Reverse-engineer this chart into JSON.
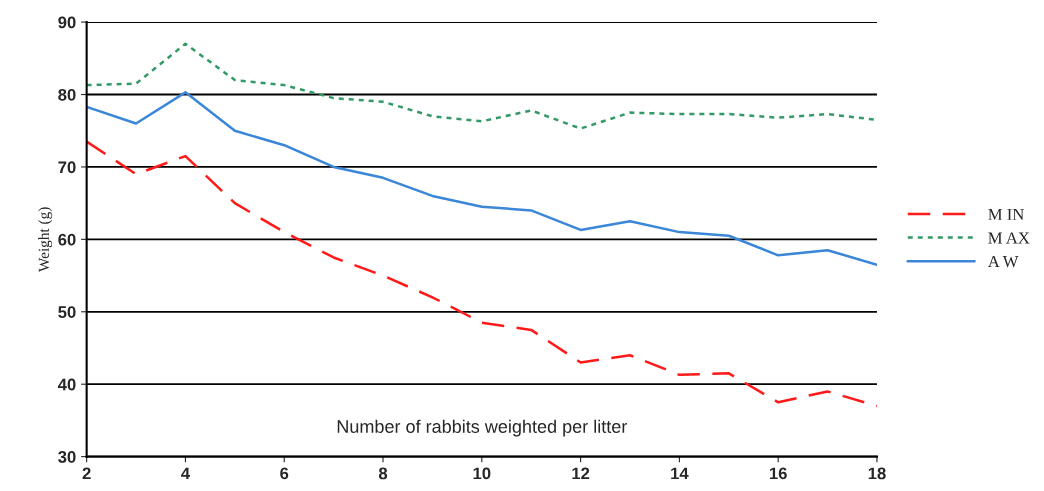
{
  "chart_data": {
    "type": "line",
    "xlabel": "Number of rabbits weighted per litter",
    "ylabel": "Weight (g)",
    "x": [
      2,
      3,
      4,
      5,
      6,
      7,
      8,
      9,
      10,
      11,
      12,
      13,
      14,
      15,
      16,
      17,
      18
    ],
    "series": [
      {
        "name": "M IN",
        "color": "#ff1a1a",
        "line_style": "dashed",
        "values": [
          73.5,
          69,
          71.5,
          65,
          61,
          57.5,
          55,
          52,
          48.5,
          47.5,
          43,
          44,
          41.3,
          41.5,
          37.5,
          39,
          37
        ]
      },
      {
        "name": "M AX",
        "color": "#339966",
        "line_style": "dotted",
        "values": [
          81.3,
          81.5,
          87,
          82,
          81.3,
          79.5,
          79,
          77,
          76.3,
          77.8,
          75.3,
          77.5,
          77.3,
          77.3,
          76.8,
          77.3,
          76.5
        ]
      },
      {
        "name": "A W",
        "color": "#3a86d8",
        "line_style": "solid",
        "values": [
          78.3,
          76,
          80.3,
          75,
          73,
          70,
          68.5,
          66,
          64.5,
          64,
          61.3,
          62.5,
          61,
          60.5,
          57.8,
          58.5,
          56.5
        ]
      }
    ],
    "xlim": [
      2,
      18
    ],
    "xticks": [
      2,
      4,
      6,
      8,
      10,
      12,
      14,
      16,
      18
    ],
    "ylim": [
      30,
      90
    ],
    "yticks": [
      30,
      40,
      50,
      60,
      70,
      80,
      90
    ],
    "grid": "y",
    "legend": "right",
    "marker": "none"
  }
}
